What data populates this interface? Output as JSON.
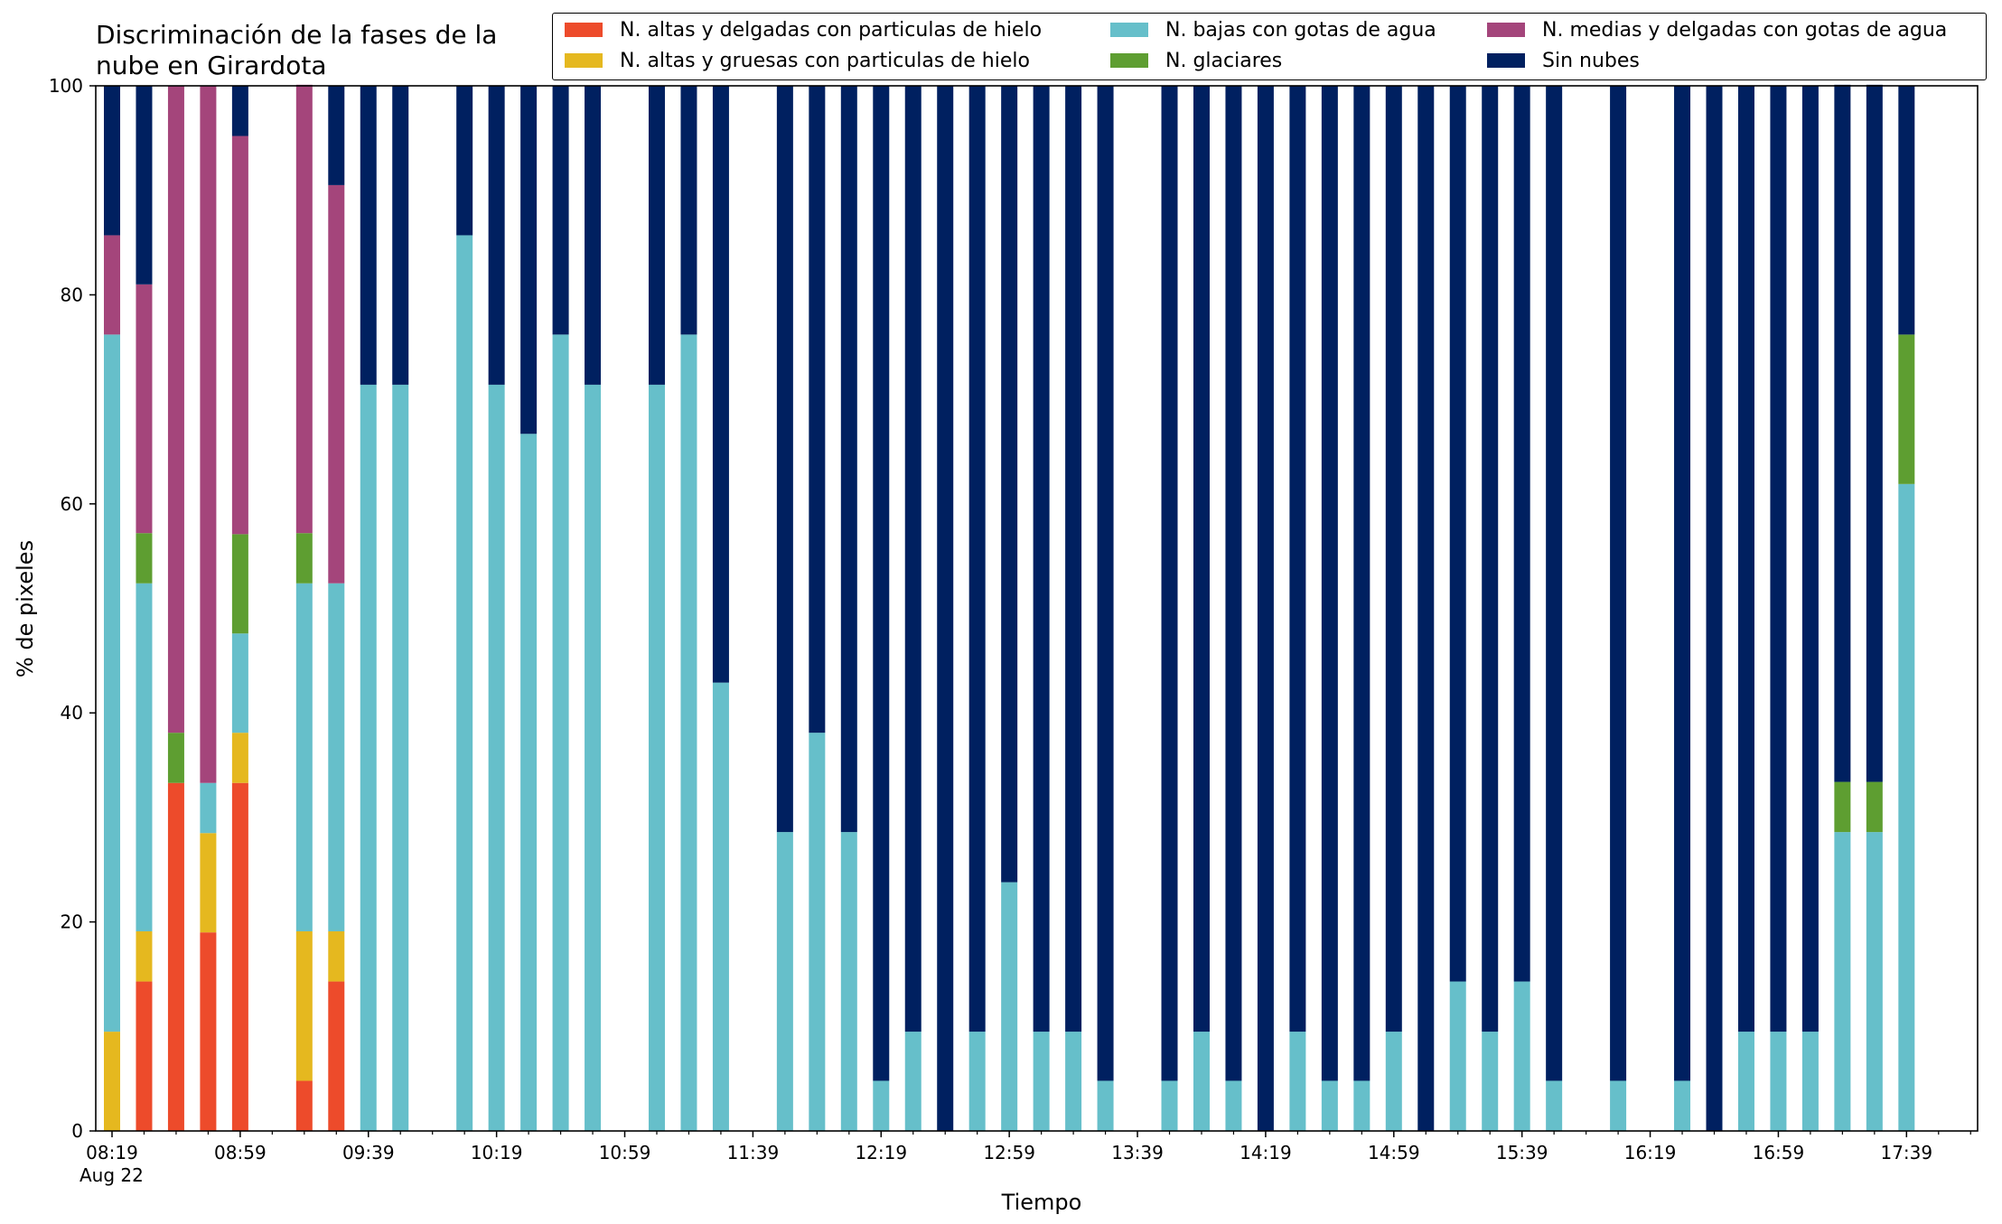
{
  "chart_data": {
    "type": "bar",
    "stacked": true,
    "title": "Discriminación de la fases de la\nnube en Girardota",
    "xlabel": "Tiempo",
    "ylabel": "% de pixeles",
    "ylim": [
      0,
      100
    ],
    "yticks": [
      0,
      20,
      40,
      60,
      80,
      100
    ],
    "grid": false,
    "legend_position": "top-right",
    "slot_count": 59,
    "xtick_labels": [
      "08:19",
      "08:59",
      "09:39",
      "10:19",
      "10:59",
      "11:39",
      "12:19",
      "12:59",
      "13:39",
      "14:19",
      "14:59",
      "15:39",
      "16:19",
      "16:59",
      "17:39"
    ],
    "xtick_sublabel": "Aug 22",
    "x": [
      "08:19",
      "08:29",
      "08:39",
      "08:49",
      "08:59",
      "09:09",
      "09:19",
      "09:29",
      "09:39",
      "09:49",
      "09:59",
      "10:09",
      "10:19",
      "10:29",
      "10:39",
      "10:49",
      "10:59",
      "11:09",
      "11:19",
      "11:29",
      "11:39",
      "11:49",
      "11:59",
      "12:09",
      "12:19",
      "12:29",
      "12:39",
      "12:49",
      "12:59",
      "13:09",
      "13:19",
      "13:29",
      "13:39",
      "13:49",
      "13:59",
      "14:09",
      "14:19",
      "14:29",
      "14:39",
      "14:49",
      "14:59",
      "15:09",
      "15:19",
      "15:29",
      "15:39",
      "15:49",
      "15:59",
      "16:09",
      "16:19",
      "16:29",
      "16:39",
      "16:49",
      "16:59",
      "17:09",
      "17:19",
      "17:29",
      "17:39",
      "17:49",
      "17:59"
    ],
    "series": [
      {
        "name": "N. altas y delgadas con particulas de hielo",
        "color": "#ed4b2b",
        "values": [
          0,
          14.3,
          33.3,
          19,
          33.3,
          0,
          4.8,
          14.3,
          0,
          0,
          0,
          0,
          0,
          0,
          0,
          0,
          0,
          0,
          0,
          0,
          0,
          0,
          0,
          0,
          0,
          0,
          0,
          0,
          0,
          0,
          0,
          0,
          0,
          0,
          0,
          0,
          0,
          0,
          0,
          0,
          0,
          0,
          0,
          0,
          0,
          0,
          0,
          0,
          0,
          0,
          0,
          0,
          0,
          0,
          0,
          0,
          0,
          0,
          0
        ]
      },
      {
        "name": "N. altas y gruesas con particulas de hielo",
        "color": "#e5b81f",
        "values": [
          9.5,
          4.8,
          0,
          9.5,
          4.8,
          0,
          14.3,
          4.8,
          0,
          0,
          0,
          0,
          0,
          0,
          0,
          0,
          0,
          0,
          0,
          0,
          0,
          0,
          0,
          0,
          0,
          0,
          0,
          0,
          0,
          0,
          0,
          0,
          0,
          0,
          0,
          0,
          0,
          0,
          0,
          0,
          0,
          0,
          0,
          0,
          0,
          0,
          0,
          0,
          0,
          0,
          0,
          0,
          0,
          0,
          0,
          0,
          0,
          0,
          0
        ]
      },
      {
        "name": "N. bajas con gotas de agua",
        "color": "#66bfca",
        "values": [
          66.7,
          33.3,
          0,
          4.8,
          9.5,
          0,
          33.3,
          33.3,
          71.4,
          71.4,
          0,
          85.7,
          71.4,
          66.7,
          76.2,
          71.4,
          0,
          71.4,
          76.2,
          42.9,
          0,
          28.6,
          38.1,
          28.6,
          4.8,
          9.5,
          0,
          9.5,
          23.8,
          9.5,
          9.5,
          4.8,
          0,
          4.8,
          9.5,
          4.8,
          0,
          9.5,
          4.8,
          4.8,
          9.5,
          0,
          14.3,
          9.5,
          14.3,
          4.8,
          0,
          4.8,
          0,
          4.8,
          0,
          9.5,
          9.5,
          9.5,
          28.6,
          28.6,
          61.9,
          0,
          0
        ]
      },
      {
        "name": "N. glaciares",
        "color": "#5e9e31",
        "values": [
          0,
          4.8,
          4.8,
          0,
          9.5,
          0,
          4.8,
          0,
          0,
          0,
          0,
          0,
          0,
          0,
          0,
          0,
          0,
          0,
          0,
          0,
          0,
          0,
          0,
          0,
          0,
          0,
          0,
          0,
          0,
          0,
          0,
          0,
          0,
          0,
          0,
          0,
          0,
          0,
          0,
          0,
          0,
          0,
          0,
          0,
          0,
          0,
          0,
          0,
          0,
          0,
          0,
          0,
          0,
          0,
          4.8,
          4.8,
          14.3,
          0,
          0
        ]
      },
      {
        "name": "N. medias y delgadas con gotas de agua",
        "color": "#a4457b",
        "values": [
          9.5,
          23.8,
          61.9,
          66.7,
          38.1,
          0,
          42.9,
          38.1,
          0,
          0,
          0,
          0,
          0,
          0,
          0,
          0,
          0,
          0,
          0,
          0,
          0,
          0,
          0,
          0,
          0,
          0,
          0,
          0,
          0,
          0,
          0,
          0,
          0,
          0,
          0,
          0,
          0,
          0,
          0,
          0,
          0,
          0,
          0,
          0,
          0,
          0,
          0,
          0,
          0,
          0,
          0,
          0,
          0,
          0,
          0,
          0,
          0,
          0,
          0
        ]
      },
      {
        "name": "Sin nubes",
        "color": "#002060",
        "values": [
          14.3,
          19,
          0,
          0,
          4.8,
          0,
          0,
          9.5,
          28.6,
          28.6,
          0,
          14.3,
          28.6,
          33.3,
          23.8,
          28.6,
          0,
          28.6,
          23.8,
          57.1,
          0,
          71.4,
          61.9,
          71.4,
          95.2,
          90.5,
          100,
          90.5,
          76.2,
          90.5,
          90.5,
          95.2,
          0,
          95.2,
          90.5,
          95.2,
          100,
          90.5,
          95.2,
          95.2,
          90.5,
          100,
          85.7,
          90.5,
          85.7,
          95.2,
          0,
          95.2,
          0,
          95.2,
          100,
          90.5,
          90.5,
          90.5,
          66.7,
          66.7,
          23.8,
          0,
          0
        ]
      }
    ]
  }
}
